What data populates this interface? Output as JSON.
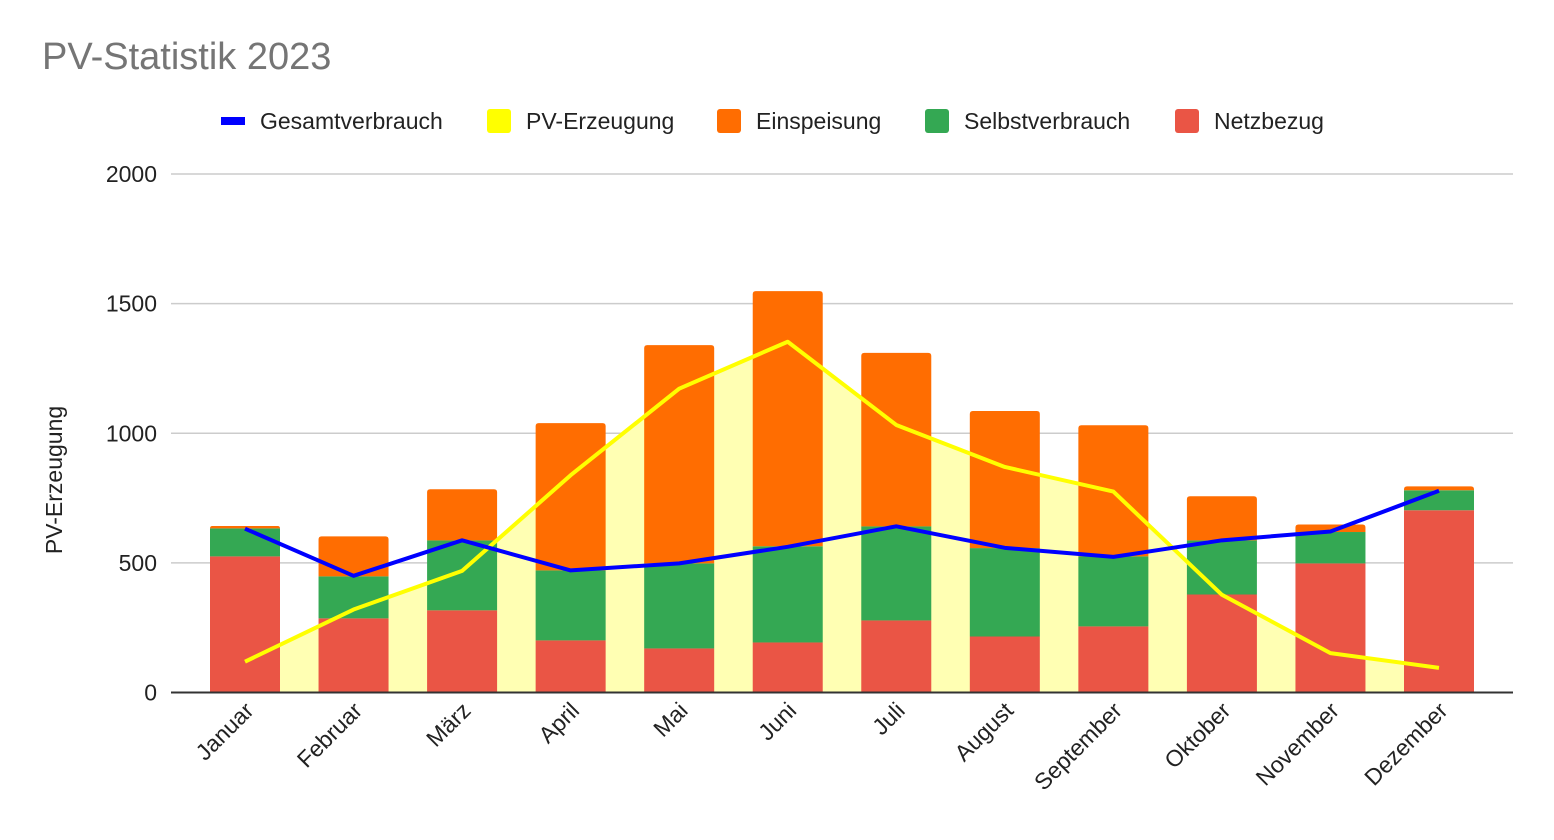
{
  "chart_data": {
    "type": "bar",
    "title": "PV-Statistik 2023",
    "xlabel": "",
    "ylabel": "PV-Erzeugung",
    "ylim": [
      0,
      2000
    ],
    "yticks": [
      0,
      500,
      1000,
      1500,
      2000
    ],
    "grid": true,
    "legend_position": "top",
    "stacked": true,
    "categories": [
      "Januar",
      "Februar",
      "März",
      "April",
      "Mai",
      "Juni",
      "Juli",
      "August",
      "September",
      "Oktober",
      "November",
      "Dezember"
    ],
    "series": [
      {
        "name": "Gesamtverbrauch",
        "type": "line",
        "color": "#0000ff",
        "values": [
          632,
          450,
          587,
          471,
          498,
          562,
          641,
          558,
          523,
          587,
          621,
          778
        ]
      },
      {
        "name": "PV-Erzeugung",
        "type": "area",
        "color": "#ffff00",
        "fill_color": "#ffffb3",
        "values": [
          119,
          320,
          469,
          838,
          1172,
          1353,
          1032,
          870,
          775,
          377,
          152,
          95
        ]
      },
      {
        "name": "Einspeisung",
        "type": "stacked-bar",
        "color": "#ff6d01",
        "values": [
          9,
          154,
          197,
          568,
          842,
          984,
          669,
          529,
          506,
          170,
          29,
          15
        ]
      },
      {
        "name": "Selbstverbrauch",
        "type": "stacked-bar",
        "color": "#34a853",
        "values": [
          108,
          162,
          270,
          270,
          328,
          371,
          363,
          341,
          270,
          209,
          121,
          77
        ]
      },
      {
        "name": "Netzbezug",
        "type": "stacked-bar",
        "color": "#ea5545",
        "values": [
          525,
          286,
          317,
          201,
          170,
          193,
          278,
          216,
          255,
          378,
          498,
          703
        ]
      }
    ]
  }
}
